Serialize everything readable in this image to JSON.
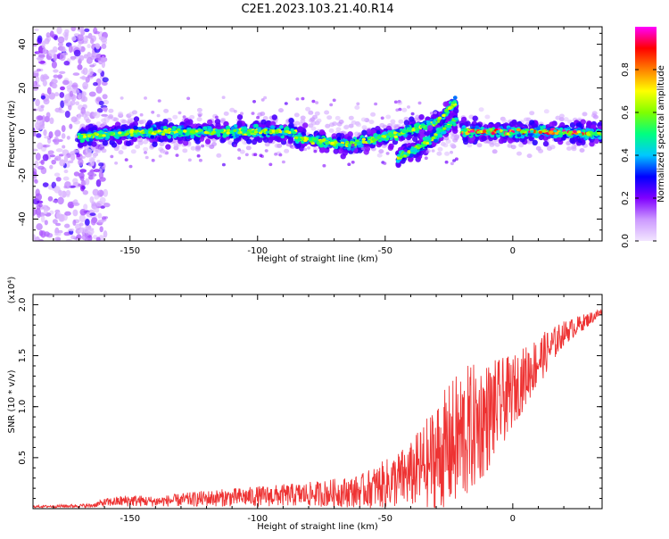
{
  "title": "C2E1.2023.103.21.40.R14",
  "chart_data": [
    {
      "type": "heatmap",
      "xlabel": "Height of straight line (km)",
      "ylabel": "Frequency (Hz)",
      "xlim": [
        -188,
        35
      ],
      "ylim": [
        -50,
        48
      ],
      "xticks": [
        -150,
        -100,
        -50,
        0
      ],
      "yticks": [
        -40,
        -20,
        0,
        20,
        40
      ],
      "colorbar": {
        "label": "Normalized spectral amplitude",
        "range": [
          0,
          1
        ],
        "ticks": [
          0.0,
          0.2,
          0.4,
          0.6,
          0.8
        ],
        "colors": [
          "#f2e6ff",
          "#cc99ff",
          "#8000ff",
          "#0000ff",
          "#00c8ff",
          "#00ff80",
          "#80ff00",
          "#ffff00",
          "#ff8000",
          "#ff0000",
          "#ff00ff"
        ]
      },
      "ridge": {
        "segments": [
          {
            "x": [
              -170,
              -140,
              -110,
              -85
            ],
            "y": [
              -2,
              0,
              0,
              0
            ]
          },
          {
            "x": [
              -85,
              -65,
              -45,
              -30,
              -22
            ],
            "y": [
              -3,
              -6,
              -1,
              4,
              14
            ]
          },
          {
            "x": [
              -45,
              -35,
              -28,
              -22
            ],
            "y": [
              -12,
              -6,
              0,
              6
            ]
          },
          {
            "x": [
              -20,
              -10,
              0,
              15,
              35
            ],
            "y": [
              0,
              0,
              0,
              0,
              -1
            ]
          }
        ]
      },
      "noise_region_x": [
        -188,
        -165
      ]
    },
    {
      "type": "line",
      "xlabel": "Height of straight line (km)",
      "ylabel": "SNR (10 * v/v)",
      "multiplier": "(x10⁴)",
      "xlim": [
        -188,
        35
      ],
      "ylim": [
        0,
        2.1
      ],
      "xticks": [
        -150,
        -100,
        -50,
        0
      ],
      "yticks": [
        0.5,
        1.0,
        1.5,
        2.0
      ],
      "color": "#ee3333",
      "envelope": {
        "x": [
          -188,
          -165,
          -160,
          -150,
          -140,
          -120,
          -100,
          -80,
          -60,
          -50,
          -40,
          -30,
          -20,
          -10,
          0,
          10,
          20,
          35
        ],
        "mean": [
          0.02,
          0.03,
          0.06,
          0.08,
          0.07,
          0.1,
          0.12,
          0.14,
          0.17,
          0.24,
          0.33,
          0.5,
          0.7,
          0.9,
          1.15,
          1.45,
          1.72,
          1.93
        ],
        "amplitude": [
          0.01,
          0.02,
          0.04,
          0.06,
          0.05,
          0.08,
          0.1,
          0.12,
          0.16,
          0.24,
          0.32,
          0.55,
          0.7,
          0.55,
          0.35,
          0.25,
          0.12,
          0.04
        ]
      }
    }
  ]
}
